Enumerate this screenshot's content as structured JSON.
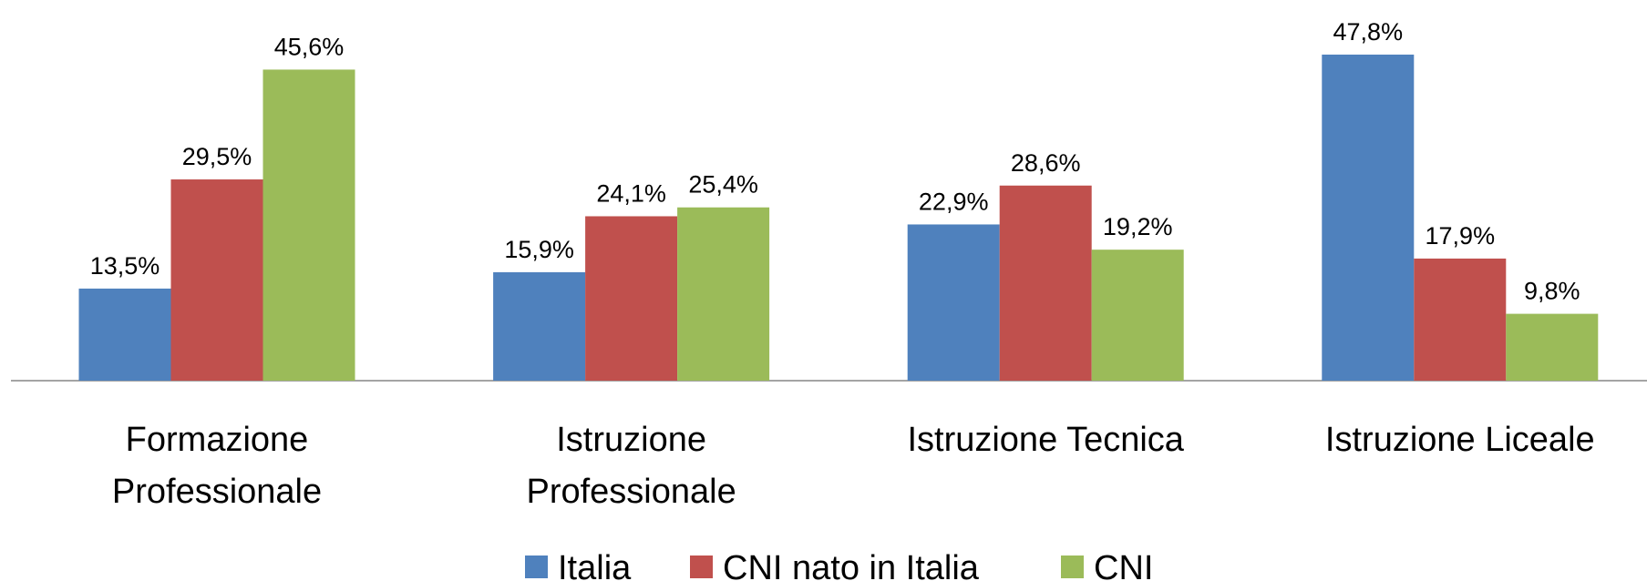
{
  "chart_data": {
    "type": "bar",
    "categories": [
      "Formazione Professionale",
      "Istruzione Professionale",
      "Istruzione Tecnica",
      "Istruzione Liceale"
    ],
    "series": [
      {
        "name": "Italia",
        "color": "#4f81bd",
        "values": [
          13.5,
          15.9,
          22.9,
          47.8
        ],
        "value_labels": [
          "13,5%",
          "15,9%",
          "22,9%",
          "47,8%"
        ]
      },
      {
        "name": "CNI nato in Italia",
        "color": "#c0504d",
        "values": [
          29.5,
          24.1,
          28.6,
          17.9
        ],
        "value_labels": [
          "29,5%",
          "24,1%",
          "28,6%",
          "17,9%"
        ]
      },
      {
        "name": "CNI",
        "color": "#9bbb59",
        "values": [
          45.6,
          25.4,
          19.2,
          9.8
        ],
        "value_labels": [
          "45,6%",
          "25,4%",
          "19,2%",
          "9,8%"
        ]
      }
    ],
    "legend": "bottom"
  }
}
